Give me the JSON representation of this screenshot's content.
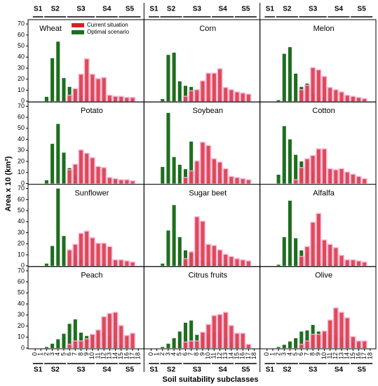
{
  "chart_data": {
    "type": "bar",
    "xlabel": "Soil suitability subclasses",
    "ylabel": "Area x 10 (km²)",
    "x": [
      0,
      1,
      2,
      3,
      4,
      5,
      6,
      7,
      8,
      9,
      10,
      11,
      12,
      13,
      14,
      15,
      16,
      17,
      18
    ],
    "xticks": [
      0,
      1,
      2,
      3,
      4,
      5,
      6,
      7,
      8,
      9,
      10,
      11,
      12,
      13,
      14,
      15,
      16,
      17,
      18
    ],
    "ylim": [
      0,
      72
    ],
    "yticks": [
      0,
      10,
      20,
      30,
      40,
      50,
      60,
      70
    ],
    "series": [
      {
        "name": "Current situation",
        "color": "#d42020"
      },
      {
        "name": "Optimal  scenario",
        "color": "#1e6e1e"
      }
    ],
    "groups": [
      {
        "label": "S1",
        "range": [
          0,
          1
        ]
      },
      {
        "label": "S2",
        "range": [
          2,
          5
        ]
      },
      {
        "label": "S3",
        "range": [
          6,
          10
        ]
      },
      {
        "label": "S4",
        "range": [
          11,
          14
        ]
      },
      {
        "label": "S5",
        "range": [
          15,
          18
        ]
      }
    ],
    "panels": [
      {
        "title": "Wheat",
        "series": [
          {
            "values": [
              0,
              0,
              0,
              0,
              0,
              0,
              5,
              11,
              24,
              38,
              24,
              20,
              21,
              5,
              4,
              4,
              3,
              3,
              0
            ]
          },
          {
            "values": [
              0,
              0,
              4,
              39,
              54,
              21,
              13,
              11,
              5,
              3,
              3,
              2,
              2,
              2,
              1,
              1,
              1,
              1,
              0
            ]
          }
        ]
      },
      {
        "title": "Corn",
        "series": [
          {
            "values": [
              0,
              0,
              0,
              0,
              0,
              0,
              4,
              9,
              10,
              18,
              25,
              25,
              29,
              12,
              10,
              8,
              7,
              6,
              0
            ]
          },
          {
            "values": [
              0,
              0,
              2,
              42,
              44,
              18,
              14,
              13,
              5,
              3,
              2,
              2,
              2,
              1,
              1,
              1,
              1,
              0,
              0
            ]
          }
        ]
      },
      {
        "title": "Melon",
        "series": [
          {
            "values": [
              0,
              0,
              0,
              0,
              0,
              0,
              10,
              14,
              30,
              28,
              22,
              12,
              10,
              8,
              5,
              4,
              3,
              2,
              0
            ]
          },
          {
            "values": [
              0,
              0,
              1,
              43,
              49,
              25,
              13,
              16,
              6,
              4,
              3,
              2,
              2,
              1,
              1,
              1,
              0,
              0,
              0
            ]
          }
        ]
      },
      {
        "title": "Potato",
        "series": [
          {
            "values": [
              0,
              0,
              0,
              0,
              0,
              0,
              12,
              17,
              30,
              27,
              23,
              15,
              14,
              5,
              4,
              3,
              3,
              2,
              0
            ]
          },
          {
            "values": [
              0,
              0,
              3,
              36,
              54,
              28,
              14,
              7,
              4,
              3,
              2,
              2,
              2,
              2,
              2,
              1,
              1,
              0,
              0
            ]
          }
        ]
      },
      {
        "title": "Soybean",
        "series": [
          {
            "values": [
              0,
              0,
              0,
              0,
              0,
              0,
              5,
              11,
              20,
              37,
              34,
              22,
              19,
              13,
              6,
              5,
              4,
              3,
              0
            ]
          },
          {
            "values": [
              0,
              0,
              15,
              64,
              24,
              17,
              13,
              38,
              5,
              3,
              2,
              2,
              2,
              1,
              1,
              1,
              0,
              0,
              0
            ]
          }
        ]
      },
      {
        "title": "Cotton",
        "series": [
          {
            "values": [
              0,
              0,
              0,
              0,
              0,
              3,
              14,
              22,
              25,
              31,
              31,
              13,
              12,
              13,
              10,
              8,
              6,
              4,
              0
            ]
          },
          {
            "values": [
              0,
              0,
              8,
              52,
              40,
              26,
              20,
              19,
              10,
              5,
              3,
              2,
              2,
              1,
              1,
              0,
              0,
              0,
              0
            ]
          }
        ]
      },
      {
        "title": "Sunflower",
        "series": [
          {
            "values": [
              0,
              0,
              0,
              0,
              0,
              0,
              14,
              19,
              29,
              31,
              25,
              20,
              20,
              17,
              5,
              5,
              4,
              3,
              0
            ]
          },
          {
            "values": [
              0,
              0,
              2,
              18,
              70,
              27,
              9,
              9,
              6,
              3,
              2,
              2,
              2,
              1,
              1,
              1,
              0,
              0,
              0
            ]
          }
        ]
      },
      {
        "title": "Sugar beet",
        "series": [
          {
            "values": [
              0,
              0,
              0,
              0,
              0,
              0,
              6,
              12,
              44,
              40,
              19,
              18,
              14,
              10,
              8,
              6,
              5,
              4,
              0
            ]
          },
          {
            "values": [
              0,
              0,
              2,
              32,
              55,
              26,
              14,
              13,
              8,
              5,
              3,
              2,
              2,
              2,
              1,
              1,
              0,
              0,
              0
            ]
          }
        ]
      },
      {
        "title": "Alfalfa",
        "series": [
          {
            "values": [
              0,
              0,
              0,
              0,
              0,
              0,
              8,
              17,
              39,
              47,
              23,
              19,
              16,
              9,
              5,
              5,
              4,
              3,
              0
            ]
          },
          {
            "values": [
              0,
              0,
              1,
              26,
              59,
              25,
              14,
              12,
              6,
              4,
              3,
              2,
              2,
              2,
              1,
              1,
              0,
              0,
              0
            ]
          }
        ]
      },
      {
        "title": "Peach",
        "series": [
          {
            "values": [
              0,
              0,
              0,
              0,
              0,
              0,
              3,
              6,
              6,
              8,
              12,
              16,
              28,
              31,
              32,
              20,
              11,
              13,
              0
            ]
          },
          {
            "values": [
              0,
              0,
              1,
              4,
              8,
              13,
              22,
              26,
              14,
              11,
              12,
              13,
              14,
              11,
              6,
              3,
              2,
              1,
              0
            ]
          }
        ]
      },
      {
        "title": "Citrus fruits",
        "series": [
          {
            "values": [
              0,
              0,
              0,
              0,
              0,
              0,
              5,
              6,
              6,
              14,
              21,
              29,
              30,
              32,
              20,
              13,
              13,
              3,
              0
            ]
          },
          {
            "values": [
              0,
              0,
              1,
              4,
              9,
              15,
              23,
              25,
              12,
              11,
              12,
              14,
              14,
              9,
              5,
              4,
              2,
              1,
              0
            ]
          }
        ]
      },
      {
        "title": "Olive",
        "series": [
          {
            "values": [
              0,
              0,
              0,
              0,
              0,
              0,
              3,
              6,
              12,
              12,
              15,
              25,
              36,
              32,
              27,
              10,
              6,
              6,
              0
            ]
          },
          {
            "values": [
              0,
              0,
              1,
              3,
              6,
              9,
              15,
              16,
              21,
              15,
              13,
              12,
              12,
              10,
              7,
              5,
              2,
              1,
              0
            ]
          }
        ]
      }
    ]
  }
}
